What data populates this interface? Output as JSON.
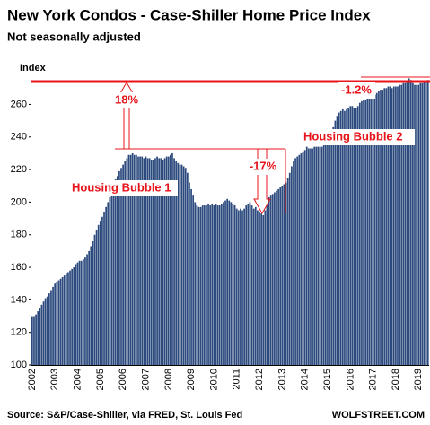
{
  "chart_data": {
    "type": "bar",
    "title": "New York Condos - Case-Shiller Home Price Index",
    "subtitle": "Not seasonally adjusted",
    "y_label": "Index",
    "source": "Source: S&P/Case-Shiller, via FRED,  St. Louis Fed",
    "credit": "WOLFSTREET.COM",
    "annotations": [
      "18%",
      "-17%",
      "-1.2%",
      "Housing Bubble 1",
      "Housing Bubble 2"
    ],
    "color": "#2c4a7e",
    "ylim": [
      100,
      277
    ],
    "yticks": [
      100,
      120,
      140,
      160,
      180,
      200,
      220,
      240,
      260
    ],
    "grid": false,
    "categories": [
      "2002",
      null,
      null,
      null,
      null,
      null,
      null,
      null,
      null,
      null,
      null,
      null,
      "2003",
      null,
      null,
      null,
      null,
      null,
      null,
      null,
      null,
      null,
      null,
      null,
      "2004",
      null,
      null,
      null,
      null,
      null,
      null,
      null,
      null,
      null,
      null,
      null,
      "2005",
      null,
      null,
      null,
      null,
      null,
      null,
      null,
      null,
      null,
      null,
      null,
      "2006",
      null,
      null,
      null,
      null,
      null,
      null,
      null,
      null,
      null,
      null,
      null,
      "2007",
      null,
      null,
      null,
      null,
      null,
      null,
      null,
      null,
      null,
      null,
      null,
      "2008",
      null,
      null,
      null,
      null,
      null,
      null,
      null,
      null,
      null,
      null,
      null,
      "2009",
      null,
      null,
      null,
      null,
      null,
      null,
      null,
      null,
      null,
      null,
      null,
      "2010",
      null,
      null,
      null,
      null,
      null,
      null,
      null,
      null,
      null,
      null,
      null,
      "2011",
      null,
      null,
      null,
      null,
      null,
      null,
      null,
      null,
      null,
      null,
      null,
      "2012",
      null,
      null,
      null,
      null,
      null,
      null,
      null,
      null,
      null,
      null,
      null,
      "2013",
      null,
      null,
      null,
      null,
      null,
      null,
      null,
      null,
      null,
      null,
      null,
      "2014",
      null,
      null,
      null,
      null,
      null,
      null,
      null,
      null,
      null,
      null,
      null,
      "2015",
      null,
      null,
      null,
      null,
      null,
      null,
      null,
      null,
      null,
      null,
      null,
      "2016",
      null,
      null,
      null,
      null,
      null,
      null,
      null,
      null,
      null,
      null,
      null,
      "2017",
      null,
      null,
      null,
      null,
      null,
      null,
      null,
      null,
      null,
      null,
      null,
      "2018",
      null,
      null,
      null,
      null,
      null,
      null,
      null,
      null,
      null,
      null,
      null,
      "2019",
      null,
      null,
      null,
      null,
      null
    ],
    "values": [
      130,
      130,
      131,
      133,
      135,
      137,
      139,
      141,
      142,
      144,
      146,
      148,
      150,
      151,
      152,
      153,
      154,
      155,
      156,
      157,
      158,
      159,
      160,
      162,
      163,
      164,
      164,
      165,
      166,
      168,
      170,
      173,
      176,
      180,
      183,
      186,
      188,
      191,
      194,
      197,
      200,
      203,
      207,
      211,
      214,
      216,
      219,
      221,
      223,
      225,
      227,
      229,
      229,
      230,
      229,
      229,
      228,
      228,
      228,
      227,
      228,
      227,
      227,
      226,
      226,
      227,
      228,
      227,
      227,
      226,
      227,
      228,
      228,
      229,
      230,
      227,
      225,
      224,
      223,
      223,
      222,
      221,
      218,
      212,
      208,
      204,
      200,
      198,
      197,
      197,
      198,
      198,
      198,
      199,
      198,
      199,
      198,
      199,
      198,
      198,
      199,
      200,
      201,
      202,
      201,
      200,
      199,
      198,
      196,
      195,
      196,
      195,
      196,
      198,
      199,
      200,
      198,
      196,
      197,
      195,
      194,
      193,
      192,
      195,
      198,
      203,
      204,
      205,
      206,
      207,
      208,
      209,
      210,
      211,
      212,
      215,
      218,
      222,
      225,
      227,
      228,
      229,
      230,
      231,
      232,
      234,
      233,
      233,
      233,
      234,
      234,
      234,
      234,
      234,
      235,
      236,
      237,
      240,
      243,
      246,
      250,
      253,
      255,
      256,
      257,
      256,
      257,
      258,
      259,
      259,
      258,
      258,
      259,
      261,
      262,
      263,
      263,
      264,
      265,
      265,
      266,
      266,
      267,
      268,
      269,
      269,
      270,
      270,
      271,
      271,
      270,
      271,
      271,
      271,
      272,
      272,
      273,
      273,
      274,
      276,
      275,
      273,
      272,
      272,
      272,
      273,
      273,
      274,
      274,
      275
    ]
  }
}
